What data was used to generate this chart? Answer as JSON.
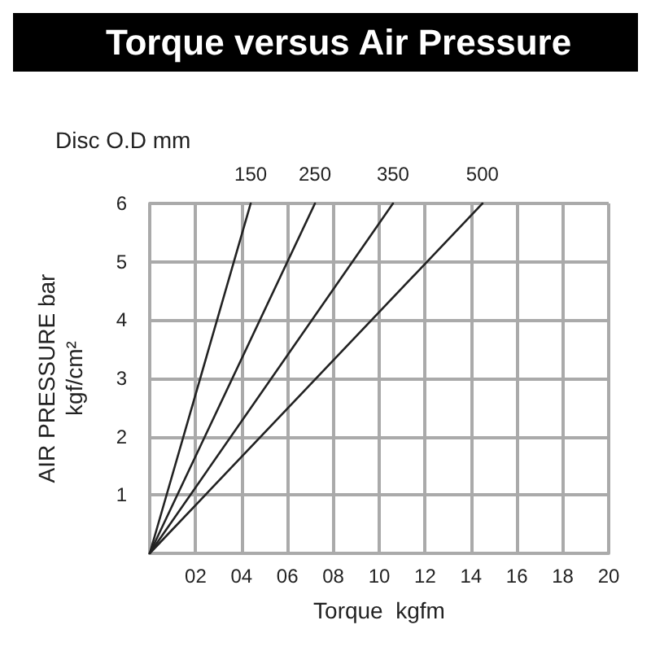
{
  "chart_data": {
    "type": "line",
    "title": "Torque versus Air Pressure",
    "legend_title": "Disc O.D mm",
    "xlabel": "Torque  kgfm",
    "ylabel": "AIR PRESSURE bar\nkgf/cm²",
    "series": [
      {
        "name": "150",
        "color": "#222222",
        "x": [
          0,
          4.4
        ],
        "values": [
          0,
          6
        ]
      },
      {
        "name": "250",
        "color": "#222222",
        "x": [
          0,
          7.2
        ],
        "values": [
          0,
          6
        ]
      },
      {
        "name": "350",
        "color": "#222222",
        "x": [
          0,
          10.6
        ],
        "values": [
          0,
          6
        ]
      },
      {
        "name": "500",
        "color": "#222222",
        "x": [
          0,
          14.5
        ],
        "values": [
          0,
          6
        ]
      }
    ],
    "xlim": [
      0,
      20
    ],
    "xticks": [
      {
        "value": 0,
        "label": null
      },
      {
        "value": 2,
        "label": "02"
      },
      {
        "value": 4,
        "label": "04"
      },
      {
        "value": 6,
        "label": "06"
      },
      {
        "value": 8,
        "label": "08"
      },
      10,
      12,
      14,
      16,
      18,
      20
    ],
    "ylim": [
      0,
      6
    ],
    "yticks": [
      {
        "value": 0,
        "label": null
      },
      1,
      2,
      3,
      4,
      5,
      6
    ],
    "grid": true,
    "legend": false,
    "marker": "none",
    "line_style": "solid"
  }
}
